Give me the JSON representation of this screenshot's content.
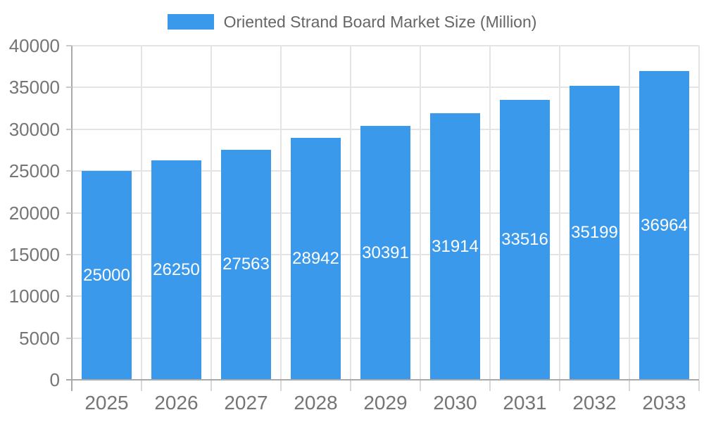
{
  "chart_data": {
    "type": "bar",
    "title": "Oriented Strand Board Market Size (Million)",
    "legend_position": "top-center",
    "categories": [
      "2025",
      "2026",
      "2027",
      "2028",
      "2029",
      "2030",
      "2031",
      "2032",
      "2033"
    ],
    "series": [
      {
        "name": "Oriented Strand Board Market Size (Million)",
        "values": [
          25000,
          26250,
          27563,
          28942,
          30391,
          31914,
          33516,
          35199,
          36964
        ]
      }
    ],
    "value_labels_shown": true,
    "xlabel": "",
    "ylabel": "",
    "ylim": [
      0,
      40000
    ],
    "yticks": [
      0,
      5000,
      10000,
      15000,
      20000,
      25000,
      30000,
      35000,
      40000
    ],
    "grid": true,
    "colors": {
      "bar": "#3B99EC",
      "bar_value_label": "#FFFFFF",
      "gridline": "#E4E4E4",
      "axis_line": "#A9A9A9",
      "x_tick": "#D8D8D8",
      "y_tick": "#C9C9C9",
      "axis_text": "#757575",
      "legend_text": "#666666",
      "background": "#FFFFFF"
    }
  }
}
